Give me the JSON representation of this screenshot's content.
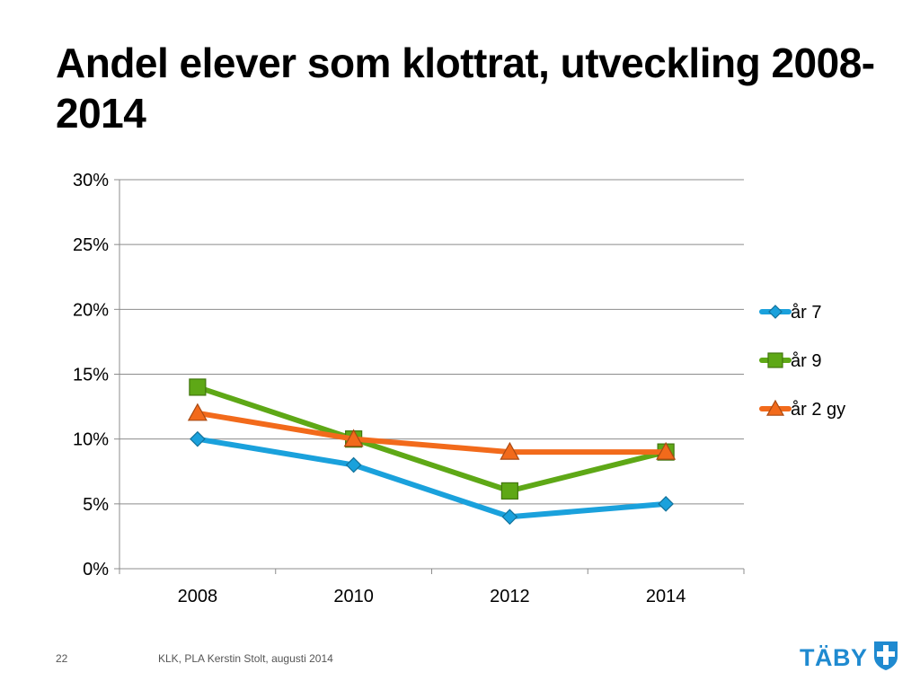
{
  "title": "Andel elever som klottrat, utveckling 2008-2014",
  "footer": {
    "page_number": "22",
    "credit": "KLK, PLA Kerstin Stolt, augusti 2014",
    "logo_text": "TÄBY",
    "logo_icon": "shield-cross-icon"
  },
  "chart_data": {
    "type": "line",
    "categories": [
      "2008",
      "2010",
      "2012",
      "2014"
    ],
    "y_ticks": [
      "0%",
      "5%",
      "10%",
      "15%",
      "20%",
      "25%",
      "30%"
    ],
    "ylim": [
      0,
      30
    ],
    "y_unit": "%",
    "grid": true,
    "legend_position": "right",
    "series": [
      {
        "name": "år 7",
        "values": [
          10,
          8,
          4,
          5
        ],
        "color": "#1aa1dc",
        "marker": "diamond"
      },
      {
        "name": "år 9",
        "values": [
          14,
          10,
          6,
          9
        ],
        "color": "#5ea816",
        "marker": "square"
      },
      {
        "name": "år 2 gy",
        "values": [
          12,
          10,
          9,
          9
        ],
        "color": "#f26a1b",
        "marker": "triangle"
      }
    ]
  }
}
